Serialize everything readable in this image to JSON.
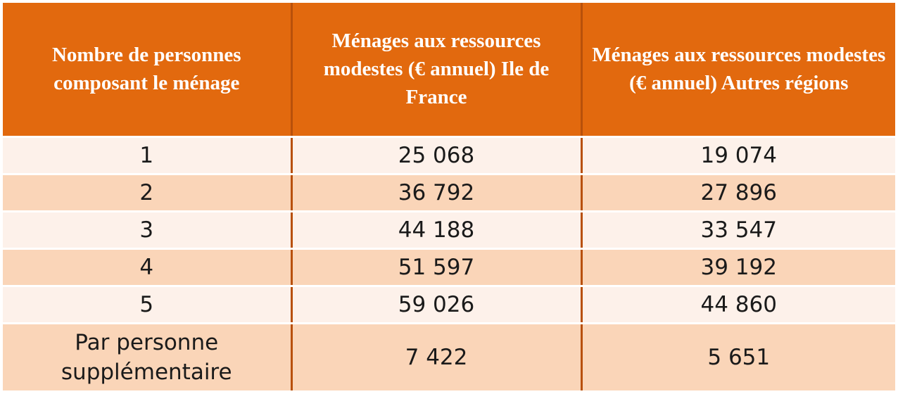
{
  "table": {
    "headers": [
      "Nombre de personnes composant le ménage",
      "Ménages aux ressources modestes (€ annuel) Ile de France",
      "Ménages aux ressources modestes (€ annuel) Autres régions"
    ],
    "rows": [
      [
        "1",
        "25 068",
        "19 074"
      ],
      [
        "2",
        "36 792",
        "27 896"
      ],
      [
        "3",
        "44 188",
        "33 547"
      ],
      [
        "4",
        "51 597",
        "39 192"
      ],
      [
        "5",
        "59 026",
        "44 860"
      ],
      [
        "Par personne supplémentaire",
        "7 422",
        "5 651"
      ]
    ]
  },
  "colors": {
    "header_bg": "#e2690e",
    "row_light": "#fdf1ea",
    "row_dark": "#fad5b8",
    "divider": "#b8500a"
  }
}
